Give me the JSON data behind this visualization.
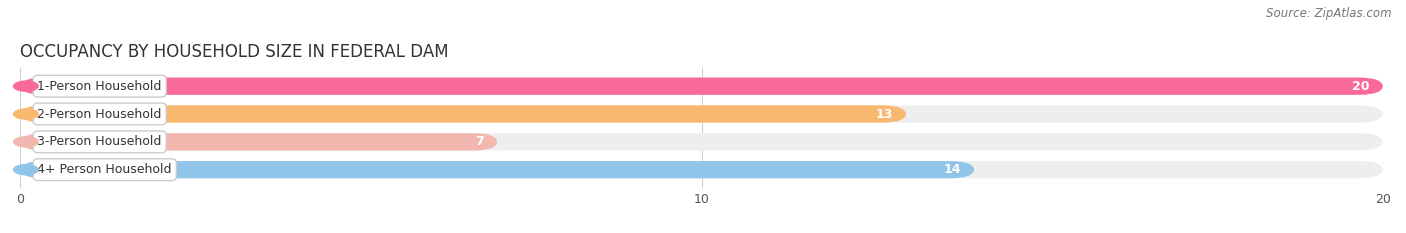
{
  "title": "OCCUPANCY BY HOUSEHOLD SIZE IN FEDERAL DAM",
  "source": "Source: ZipAtlas.com",
  "categories": [
    "1-Person Household",
    "2-Person Household",
    "3-Person Household",
    "4+ Person Household"
  ],
  "values": [
    20,
    13,
    7,
    14
  ],
  "bar_colors": [
    "#F9699A",
    "#F9B870",
    "#F2B8B0",
    "#90C4E8"
  ],
  "label_border_colors": [
    "#F9699A",
    "#F9B870",
    "#F2B8B0",
    "#90C4E8"
  ],
  "xlim": [
    0,
    20
  ],
  "xticks": [
    0,
    10,
    20
  ],
  "title_fontsize": 12,
  "source_fontsize": 8.5,
  "bar_label_fontsize": 9,
  "tick_fontsize": 9,
  "category_fontsize": 9,
  "bg_color": "#FFFFFF",
  "grid_color": "#CCCCCC",
  "bar_height": 0.62
}
